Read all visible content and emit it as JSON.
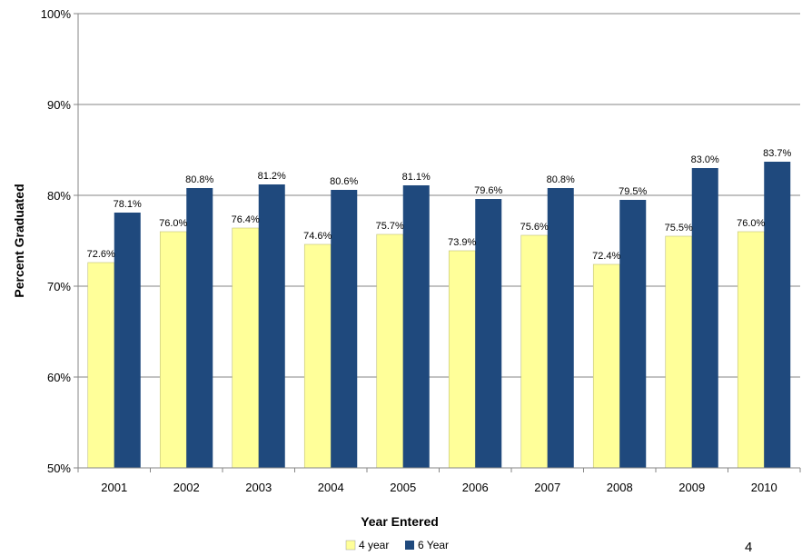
{
  "page_number": "4",
  "chart_data": {
    "type": "bar",
    "xlabel": "Year Entered",
    "ylabel": "Percent Graduated",
    "categories": [
      "2001",
      "2002",
      "2003",
      "2004",
      "2005",
      "2006",
      "2007",
      "2008",
      "2009",
      "2010"
    ],
    "series": [
      {
        "name": "4 year",
        "color": "#FFFF99",
        "values": [
          72.6,
          76.0,
          76.4,
          74.6,
          75.7,
          73.9,
          75.6,
          72.4,
          75.5,
          76.0
        ],
        "labels": [
          "72.6%",
          "76.0%",
          "76.4%",
          "74.6%",
          "75.7%",
          "73.9%",
          "75.6%",
          "72.4%",
          "75.5%",
          "76.0%"
        ]
      },
      {
        "name": "6 Year",
        "color": "#1F497D",
        "values": [
          78.1,
          80.8,
          81.2,
          80.6,
          81.1,
          79.6,
          80.8,
          79.5,
          83.0,
          83.7
        ],
        "labels": [
          "78.1%",
          "80.8%",
          "81.2%",
          "80.6%",
          "81.1%",
          "79.6%",
          "80.8%",
          "79.5%",
          "83.0%",
          "83.7%"
        ]
      }
    ],
    "ylim": [
      50,
      100
    ],
    "yticks": [
      50,
      60,
      70,
      80,
      90,
      100
    ],
    "ytick_labels": [
      "50%",
      "60%",
      "70%",
      "80%",
      "90%",
      "100%"
    ],
    "grid": true,
    "legend_position": "bottom"
  }
}
